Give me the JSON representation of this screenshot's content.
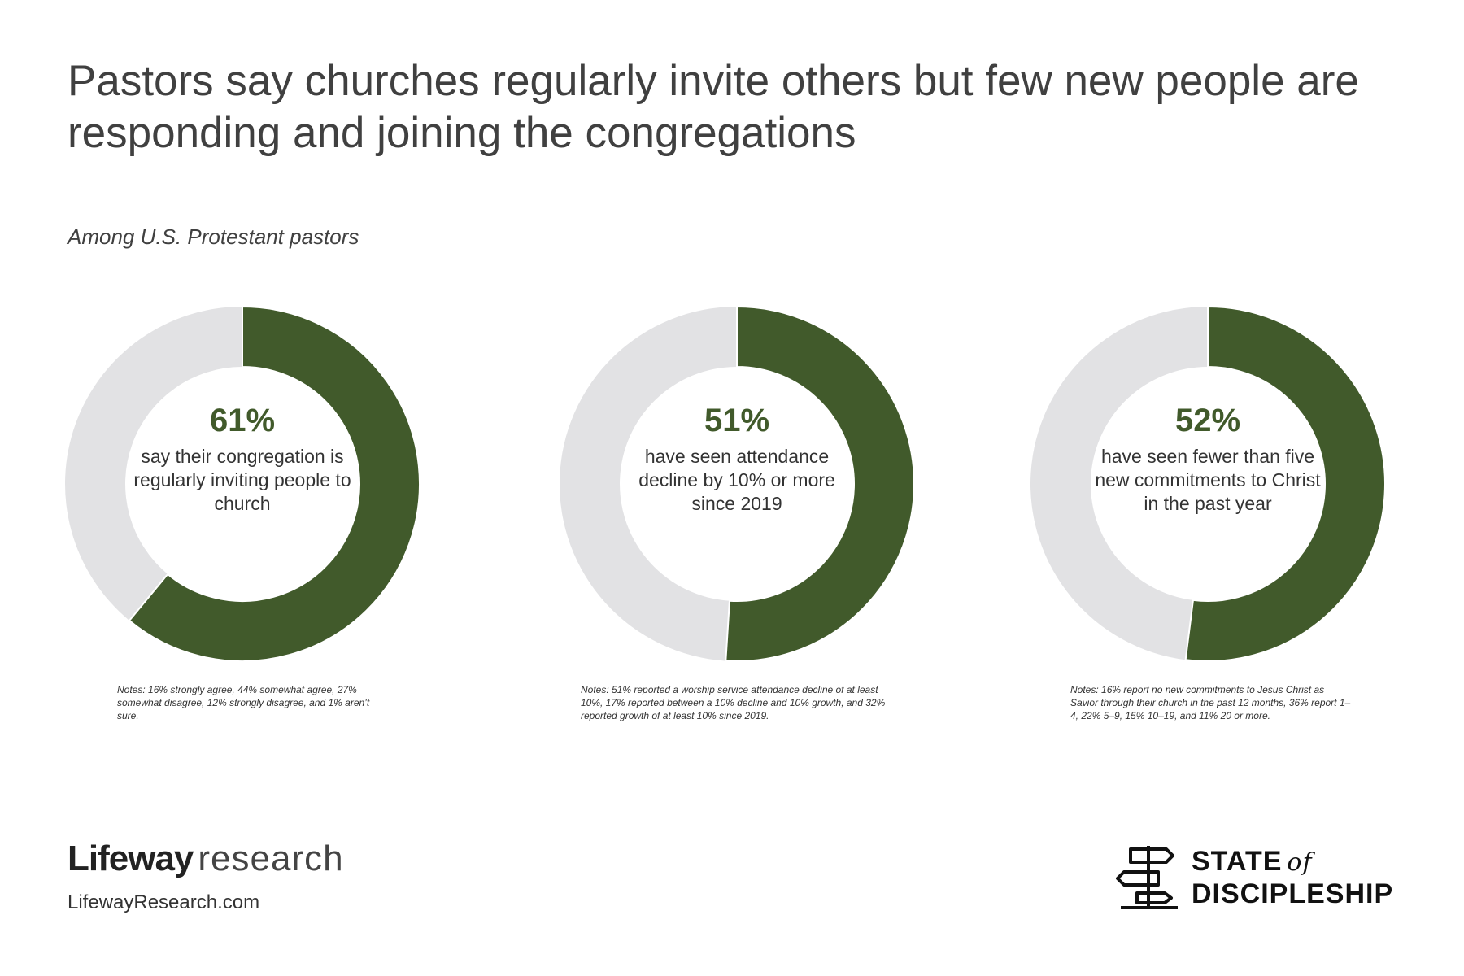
{
  "title": "Pastors say churches regularly invite others but few new people are responding and joining the congregations",
  "subtitle": "Among U.S. Protestant pastors",
  "colors": {
    "accent": "#415a2b",
    "track": "#e2e2e4",
    "text": "#404040"
  },
  "chart_data": [
    {
      "type": "pie",
      "style": "donut",
      "values": [
        61,
        39
      ],
      "highlight_value_label": "61%",
      "center_text": "say their congregation is regularly inviting people to church",
      "note": "Notes: 16% strongly agree, 44% somewhat agree, 27% somewhat disagree, 12% strongly disagree, and 1% aren’t sure."
    },
    {
      "type": "pie",
      "style": "donut",
      "values": [
        51,
        49
      ],
      "highlight_value_label": "51%",
      "center_text": "have seen attendance decline by 10% or more since 2019",
      "note": "Notes: 51% reported a worship service attendance decline of at least 10%, 17% reported between a 10% decline and 10% growth, and 32% reported growth of at least 10% since 2019."
    },
    {
      "type": "pie",
      "style": "donut",
      "values": [
        52,
        48
      ],
      "highlight_value_label": "52%",
      "center_text": "have seen fewer than five new commitments to Christ in the past year",
      "note": "Notes: 16% report no new commitments to Jesus Christ as Savior through their church in the past 12 months, 36% report 1–4, 22% 5–9, 15% 10–19, and 11% 20 or more."
    }
  ],
  "footer": {
    "brand_bold": "Lifeway",
    "brand_light": "research",
    "url": "LifewayResearch.com",
    "sod_state": "STATE",
    "sod_of": "of",
    "sod_discipleship": "DISCIPLESHIP",
    "sod_icon": "signpost-icon"
  }
}
